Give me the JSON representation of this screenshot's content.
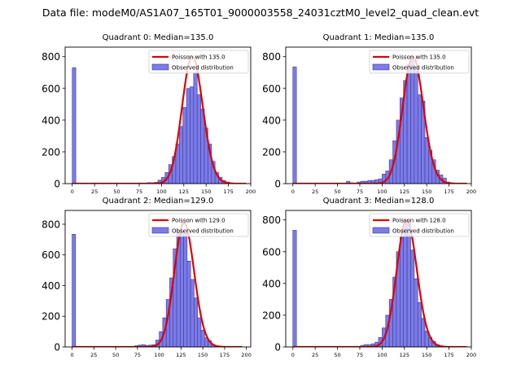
{
  "figure_title": "Data file: modeM0/AS1A07_165T01_9000003558_24031cztM0_level2_quad_clean.evt",
  "colors": {
    "bar_fill": "#7b7bea",
    "bar_edge": "#3d3d8f",
    "poisson_line": "#e00000"
  },
  "legend_labels": {
    "observed": "Observed distribution"
  },
  "chart_data": [
    {
      "type": "bar",
      "title": "Quadrant 0: Median=135.0",
      "poisson_label": "Poisson with 135.0",
      "poisson_mean": 135.0,
      "poisson_peak": 800,
      "bin_width": 4,
      "bin_starts": [
        0,
        4,
        8,
        12,
        16,
        20,
        24,
        28,
        32,
        36,
        40,
        44,
        48,
        52,
        56,
        60,
        64,
        68,
        72,
        76,
        80,
        84,
        88,
        92,
        96,
        100,
        104,
        108,
        112,
        116,
        120,
        124,
        128,
        132,
        136,
        140,
        144,
        148,
        152,
        156,
        160,
        164,
        168,
        172,
        176,
        180,
        184,
        188,
        192,
        196
      ],
      "values": [
        730,
        0,
        0,
        0,
        0,
        0,
        0,
        0,
        0,
        0,
        0,
        0,
        0,
        0,
        0,
        0,
        0,
        0,
        0,
        2,
        3,
        6,
        5,
        8,
        22,
        40,
        70,
        120,
        170,
        250,
        360,
        480,
        600,
        610,
        700,
        560,
        470,
        350,
        250,
        140,
        70,
        40,
        20,
        10,
        5,
        2,
        1,
        0,
        0,
        0
      ],
      "xlim": [
        -8,
        200
      ],
      "ylim": [
        0,
        860
      ],
      "xticks": [
        0,
        25,
        50,
        75,
        100,
        125,
        150,
        175,
        200
      ],
      "yticks": [
        0,
        200,
        400,
        600,
        800
      ],
      "legend": "top-right"
    },
    {
      "type": "bar",
      "title": "Quadrant 1: Median=135.0",
      "poisson_label": "Poisson with 135.0",
      "poisson_mean": 135.0,
      "poisson_peak": 800,
      "bin_width": 4,
      "bin_starts": [
        0,
        4,
        8,
        12,
        16,
        20,
        24,
        28,
        32,
        36,
        40,
        44,
        48,
        52,
        56,
        60,
        64,
        68,
        72,
        76,
        80,
        84,
        88,
        92,
        96,
        100,
        104,
        108,
        112,
        116,
        120,
        124,
        128,
        132,
        136,
        140,
        144,
        148,
        152,
        156,
        160,
        164,
        168,
        172,
        176,
        180,
        184,
        188,
        192,
        196
      ],
      "values": [
        735,
        0,
        0,
        0,
        0,
        0,
        0,
        0,
        0,
        0,
        0,
        0,
        0,
        0,
        0,
        15,
        5,
        0,
        10,
        15,
        15,
        20,
        20,
        25,
        30,
        60,
        80,
        150,
        270,
        400,
        540,
        650,
        750,
        780,
        740,
        560,
        520,
        290,
        210,
        150,
        85,
        55,
        35,
        10,
        5,
        1,
        0,
        0,
        0,
        0
      ],
      "xlim": [
        -8,
        200
      ],
      "ylim": [
        0,
        860
      ],
      "xticks": [
        0,
        25,
        50,
        75,
        100,
        125,
        150,
        175,
        200
      ],
      "yticks": [
        0,
        200,
        400,
        600,
        800
      ],
      "legend": "top-right"
    },
    {
      "type": "bar",
      "title": "Quadrant 2: Median=129.0",
      "poisson_label": "Poisson with 129.0",
      "poisson_mean": 129.0,
      "poisson_peak": 810,
      "bin_width": 4,
      "bin_starts": [
        0,
        4,
        8,
        12,
        16,
        20,
        24,
        28,
        32,
        36,
        40,
        44,
        48,
        52,
        56,
        60,
        64,
        68,
        72,
        76,
        80,
        84,
        88,
        92,
        96,
        100,
        104,
        108,
        112,
        116,
        120,
        124,
        128,
        132,
        136,
        140,
        144,
        148,
        152,
        156,
        160,
        164,
        168,
        172,
        176,
        180,
        184,
        188,
        192,
        196
      ],
      "values": [
        735,
        0,
        0,
        0,
        0,
        0,
        0,
        0,
        0,
        0,
        0,
        0,
        0,
        0,
        0,
        0,
        0,
        0,
        8,
        12,
        15,
        10,
        12,
        15,
        45,
        100,
        190,
        310,
        450,
        640,
        760,
        760,
        740,
        560,
        440,
        320,
        190,
        110,
        60,
        40,
        15,
        8,
        5,
        2,
        1,
        0,
        0,
        0,
        0,
        0
      ],
      "xlim": [
        -8,
        205
      ],
      "ylim": [
        0,
        890
      ],
      "xticks": [
        0,
        25,
        50,
        75,
        100,
        125,
        150,
        175,
        200
      ],
      "yticks": [
        0,
        200,
        400,
        600,
        800
      ],
      "legend": "top-right"
    },
    {
      "type": "bar",
      "title": "Quadrant 3: Median=128.0",
      "poisson_label": "Poisson with 128.0",
      "poisson_mean": 128.0,
      "poisson_peak": 800,
      "bin_width": 4,
      "bin_starts": [
        0,
        4,
        8,
        12,
        16,
        20,
        24,
        28,
        32,
        36,
        40,
        44,
        48,
        52,
        56,
        60,
        64,
        68,
        72,
        76,
        80,
        84,
        88,
        92,
        96,
        100,
        104,
        108,
        112,
        116,
        120,
        124,
        128,
        132,
        136,
        140,
        144,
        148,
        152,
        156,
        160,
        164,
        168,
        172,
        176,
        180,
        184,
        188,
        192,
        196
      ],
      "values": [
        735,
        0,
        0,
        0,
        0,
        0,
        0,
        0,
        0,
        0,
        0,
        0,
        0,
        0,
        0,
        0,
        0,
        0,
        0,
        10,
        15,
        15,
        20,
        30,
        60,
        120,
        200,
        300,
        440,
        600,
        690,
        800,
        780,
        610,
        430,
        280,
        180,
        100,
        60,
        35,
        15,
        8,
        4,
        2,
        1,
        0,
        0,
        0,
        0,
        0
      ],
      "xlim": [
        -8,
        200
      ],
      "ylim": [
        0,
        860
      ],
      "xticks": [
        0,
        25,
        50,
        75,
        100,
        125,
        150,
        175,
        200
      ],
      "yticks": [
        0,
        200,
        400,
        600,
        800
      ],
      "legend": "top-right"
    }
  ]
}
